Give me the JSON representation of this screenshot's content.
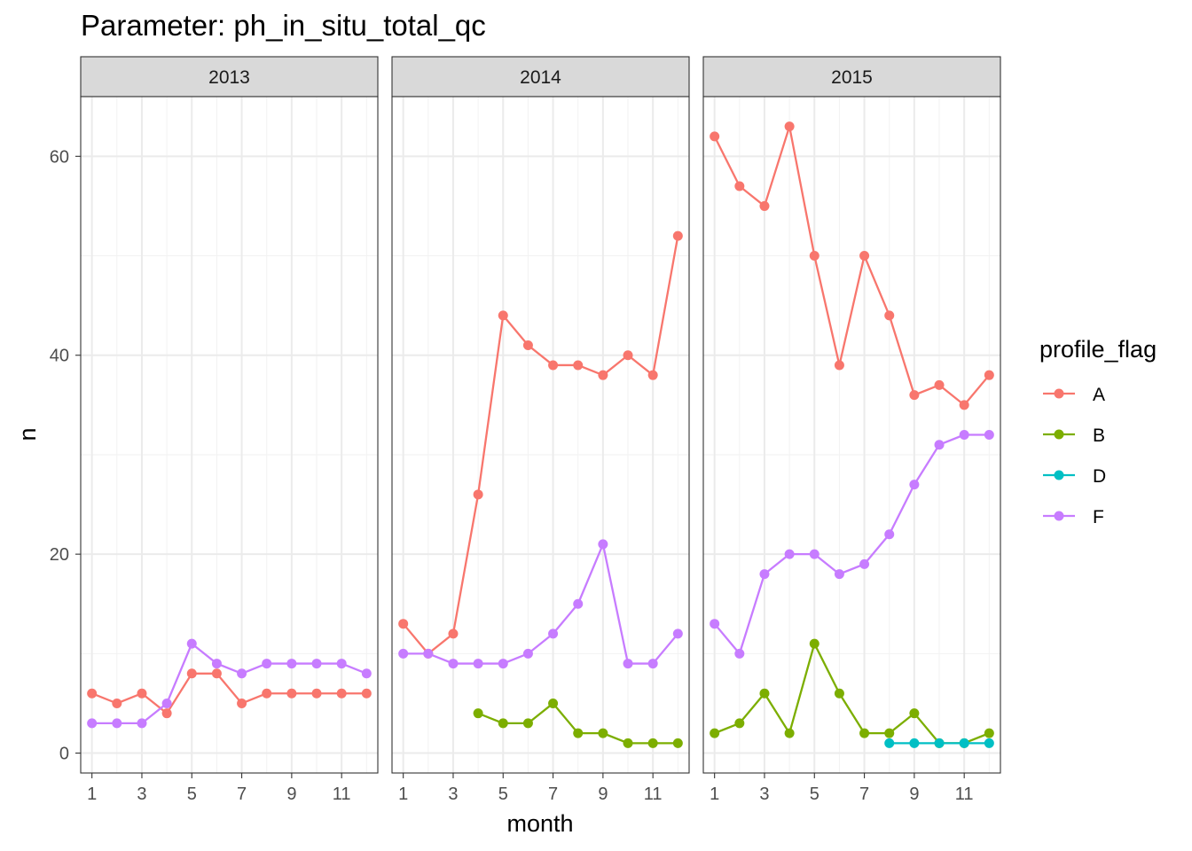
{
  "chart_data": {
    "type": "line",
    "title": "Parameter:  ph_in_situ_total_qc",
    "xlabel": "month",
    "ylabel": "n",
    "xlim": [
      0.55,
      12.45
    ],
    "ylim": [
      -2,
      66
    ],
    "x_ticks": [
      1,
      3,
      5,
      7,
      9,
      11
    ],
    "y_ticks": [
      0,
      20,
      40,
      60
    ],
    "grid": true,
    "legend": {
      "title": "profile_flag",
      "position": "right",
      "entries": [
        "A",
        "B",
        "D",
        "F"
      ]
    },
    "colors": {
      "A": "#F8766D",
      "B": "#7CAE00",
      "D": "#00BFC4",
      "F": "#C77CFF"
    },
    "panels": [
      {
        "label": "2013",
        "series": [
          {
            "name": "A",
            "x": [
              1,
              2,
              3,
              4,
              5,
              6,
              7,
              8,
              9,
              10,
              11,
              12
            ],
            "y": [
              6,
              5,
              6,
              4,
              8,
              8,
              5,
              6,
              6,
              6,
              6,
              6
            ]
          },
          {
            "name": "F",
            "x": [
              1,
              2,
              3,
              4,
              5,
              6,
              7,
              8,
              9,
              10,
              11,
              12
            ],
            "y": [
              3,
              3,
              3,
              5,
              11,
              9,
              8,
              9,
              9,
              9,
              9,
              8
            ]
          }
        ]
      },
      {
        "label": "2014",
        "series": [
          {
            "name": "A",
            "x": [
              1,
              2,
              3,
              4,
              5,
              6,
              7,
              8,
              9,
              10,
              11,
              12
            ],
            "y": [
              13,
              10,
              12,
              26,
              44,
              41,
              39,
              39,
              38,
              40,
              38,
              52
            ]
          },
          {
            "name": "B",
            "x": [
              4,
              5,
              6,
              7,
              8,
              9,
              10,
              11,
              12
            ],
            "y": [
              4,
              3,
              3,
              5,
              2,
              2,
              1,
              1,
              1
            ]
          },
          {
            "name": "F",
            "x": [
              1,
              2,
              3,
              4,
              5,
              6,
              7,
              8,
              9,
              10,
              11,
              12
            ],
            "y": [
              10,
              10,
              9,
              9,
              9,
              10,
              12,
              15,
              21,
              9,
              9,
              12
            ]
          }
        ]
      },
      {
        "label": "2015",
        "series": [
          {
            "name": "A",
            "x": [
              1,
              2,
              3,
              4,
              5,
              6,
              7,
              8,
              9,
              10,
              11,
              12
            ],
            "y": [
              62,
              57,
              55,
              63,
              50,
              39,
              50,
              44,
              36,
              37,
              35,
              38
            ]
          },
          {
            "name": "B",
            "x": [
              1,
              2,
              3,
              4,
              5,
              6,
              7,
              8,
              9,
              10,
              11,
              12
            ],
            "y": [
              2,
              3,
              6,
              2,
              11,
              6,
              2,
              2,
              4,
              1,
              1,
              2
            ]
          },
          {
            "name": "D",
            "x": [
              8,
              9,
              10,
              11,
              12
            ],
            "y": [
              1,
              1,
              1,
              1,
              1
            ]
          },
          {
            "name": "F",
            "x": [
              1,
              2,
              3,
              4,
              5,
              6,
              7,
              8,
              9,
              10,
              11,
              12
            ],
            "y": [
              13,
              10,
              18,
              20,
              20,
              18,
              19,
              22,
              27,
              31,
              32,
              32
            ]
          }
        ]
      }
    ]
  }
}
